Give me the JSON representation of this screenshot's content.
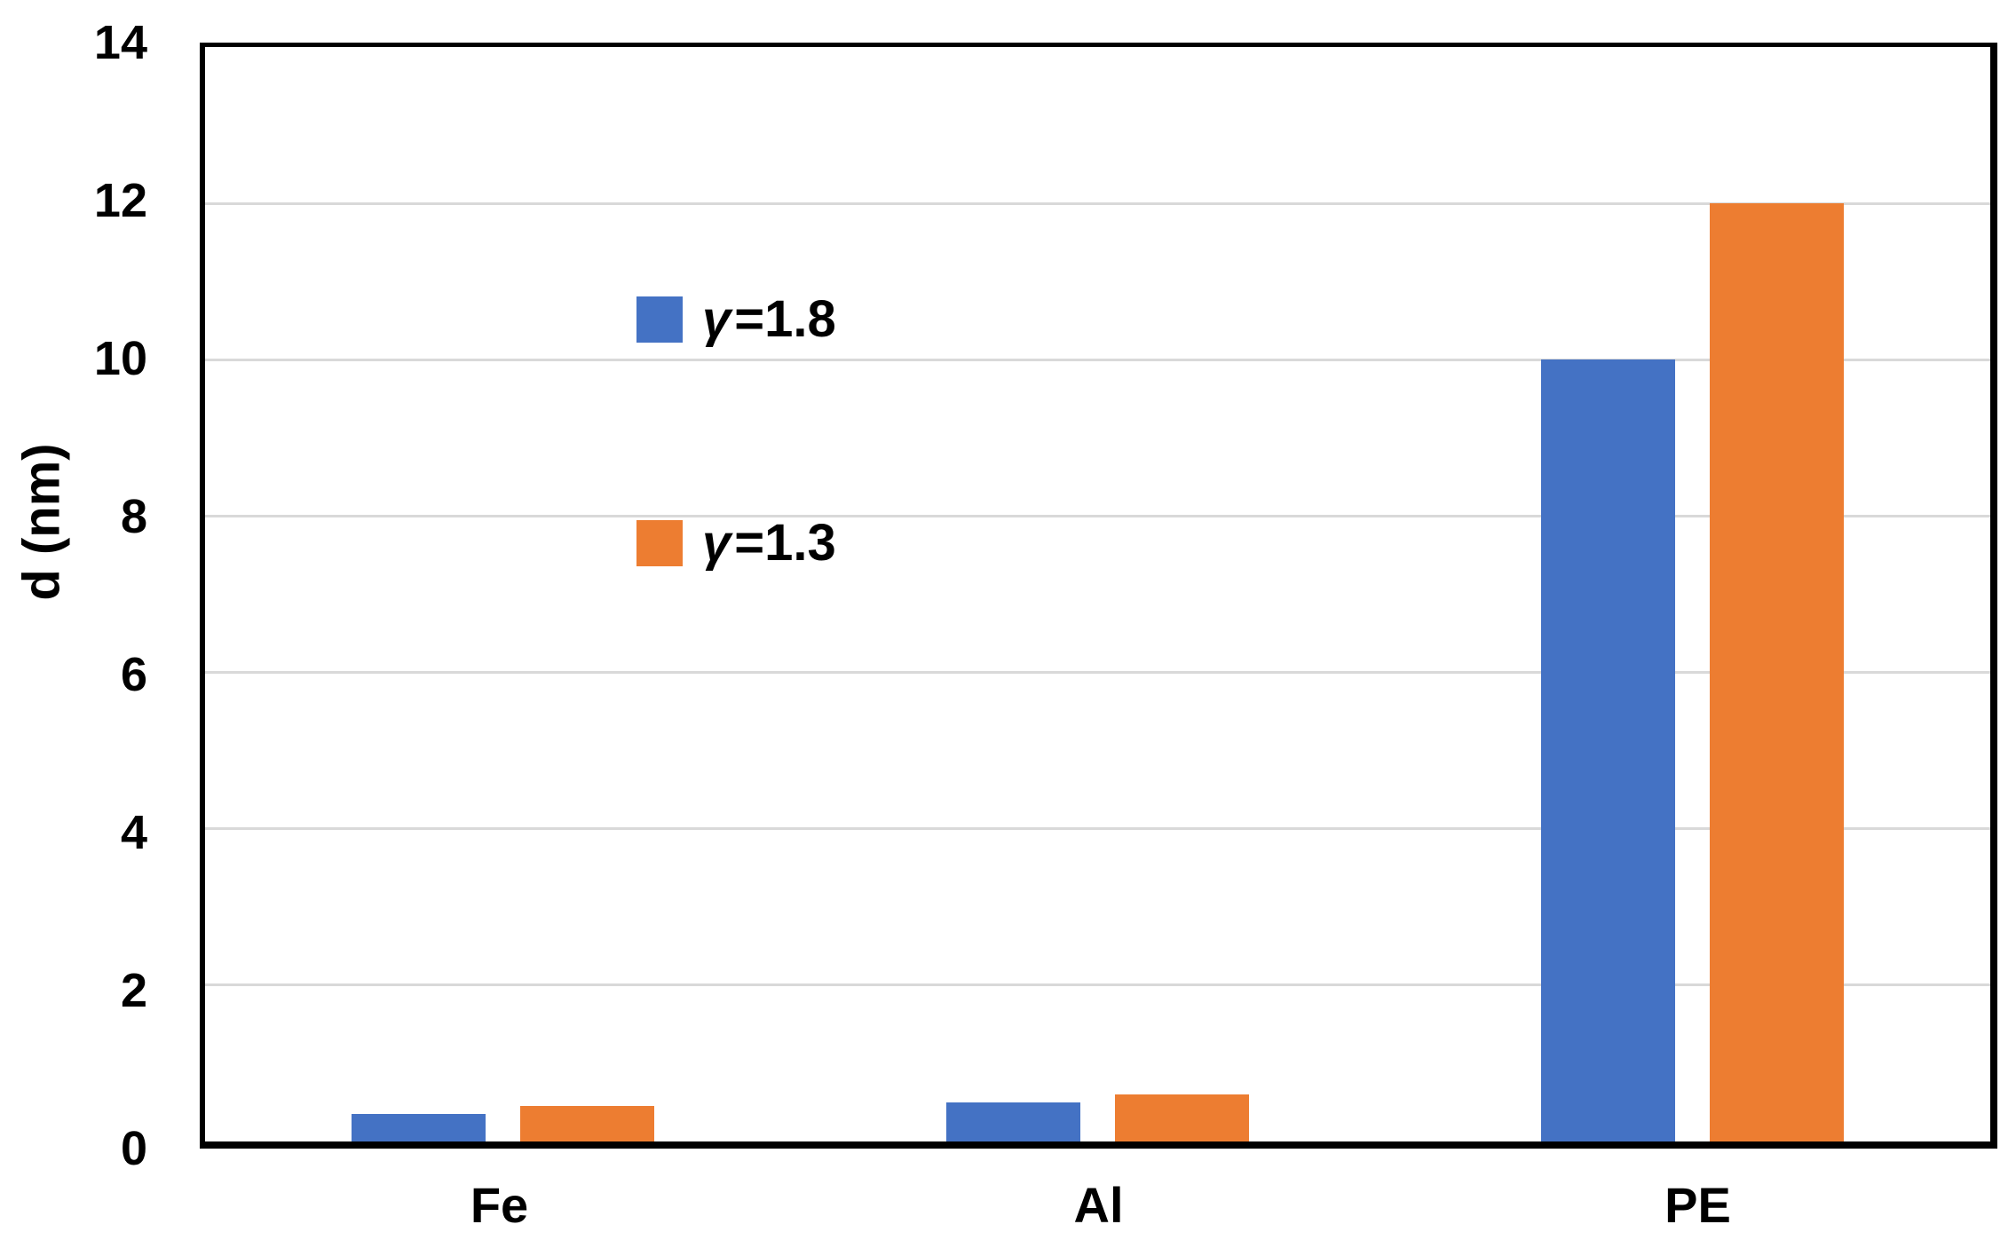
{
  "chart_data": {
    "type": "bar",
    "title": "",
    "categories": [
      "Fe",
      "Al",
      "PE"
    ],
    "series": [
      {
        "name": "γ=1.8",
        "symbol": "γ",
        "suffix": "=1.8",
        "color": "#4472C4",
        "values": [
          0.35,
          0.5,
          10
        ]
      },
      {
        "name": "γ=1.3",
        "symbol": "γ",
        "suffix": "=1.3",
        "color": "#ED7D31",
        "values": [
          0.45,
          0.6,
          12
        ]
      }
    ],
    "xlabel": "",
    "ylabel": "d (nm)",
    "ylim": [
      0,
      14
    ],
    "yticks": [
      0,
      2,
      4,
      6,
      8,
      10,
      12,
      14
    ],
    "grid": true,
    "legend_position": "inside-top-left"
  },
  "colors": {
    "grid": "#D9D9D9",
    "axis_frame": "#000000",
    "text": "#000000",
    "background": "#FFFFFF"
  }
}
